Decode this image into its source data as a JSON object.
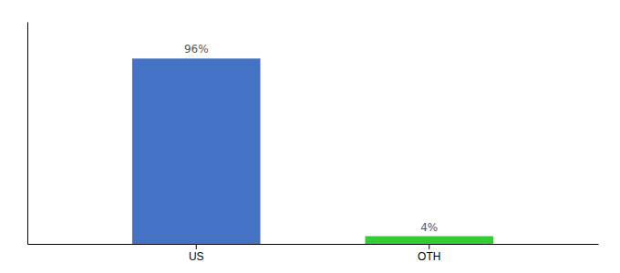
{
  "chart_data": {
    "type": "bar",
    "categories": [
      "US",
      "OTH"
    ],
    "values": [
      96,
      4
    ],
    "value_labels": [
      "96%",
      "4%"
    ],
    "colors": [
      "#4472c4",
      "#33cc33"
    ],
    "ylim": [
      0,
      115
    ],
    "data_labels": true,
    "tick_labels": "x",
    "grid": false
  }
}
